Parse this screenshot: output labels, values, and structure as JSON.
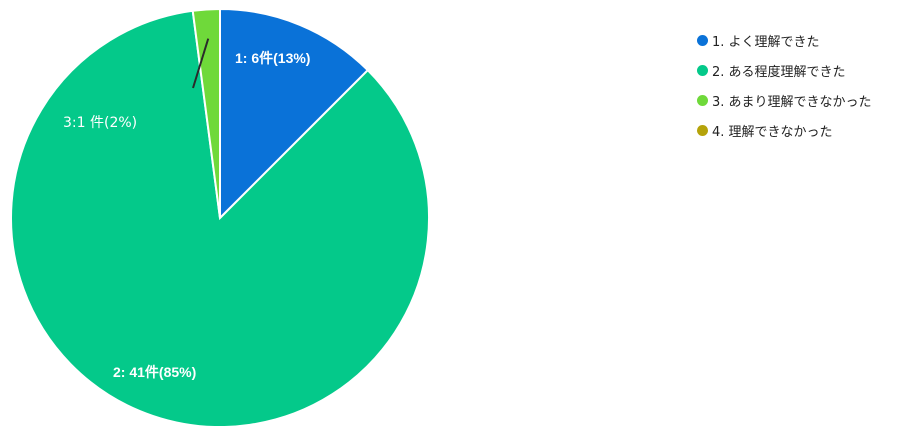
{
  "chart_data": {
    "type": "pie",
    "categories": [
      "1. よく理解できた",
      "2. ある程度理解できた",
      "3. あまり理解できなかった",
      "4. 理解できなかった"
    ],
    "values": [
      6,
      41,
      1,
      0
    ],
    "percentages": [
      13,
      85,
      2,
      0
    ],
    "colors": [
      "#0a72d8",
      "#04c98a",
      "#6fd93a",
      "#b5a30a"
    ],
    "slice_labels": [
      "1: 6件(13%)",
      "2: 41件(85%)",
      "3:1 件(2%)",
      ""
    ],
    "legend_position": "right",
    "title": ""
  }
}
